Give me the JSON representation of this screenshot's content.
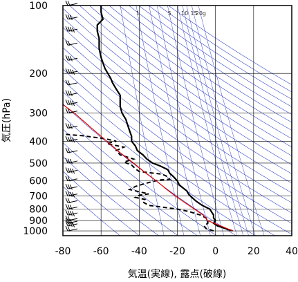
{
  "chart_data": {
    "type": "line",
    "title": "",
    "xlabel": "気温(実線), 露点(破線)",
    "ylabel": "気圧(hPa)",
    "xlim": [
      -80,
      40
    ],
    "ylim": [
      1050,
      100
    ],
    "y_scale": "log",
    "grid": true,
    "x_ticks": [
      -80,
      -60,
      -40,
      -20,
      0,
      20,
      40
    ],
    "y_ticks": [
      100,
      200,
      300,
      400,
      500,
      600,
      700,
      800,
      900,
      1000
    ],
    "mixing_ratio_labels": [
      "1",
      "5",
      "10",
      "15",
      "20g"
    ],
    "mixing_ratio_values": [
      1,
      5,
      10,
      15,
      20
    ],
    "colors": {
      "temperature": "#000000",
      "dewpoint": "#000000",
      "parcel": "#e00000",
      "background_lines": "#3344cc",
      "wind_barbs": "#000000"
    },
    "series": [
      {
        "name": "気温",
        "style": "solid",
        "points": [
          [
            9,
            1000
          ],
          [
            5,
            975
          ],
          [
            1,
            950
          ],
          [
            -1,
            925
          ],
          [
            0,
            900
          ],
          [
            -1,
            875
          ],
          [
            -1,
            850
          ],
          [
            -2,
            825
          ],
          [
            -3,
            800
          ],
          [
            -7,
            770
          ],
          [
            -10,
            740
          ],
          [
            -12,
            715
          ],
          [
            -14,
            690
          ],
          [
            -15,
            665
          ],
          [
            -17,
            645
          ],
          [
            -19,
            625
          ],
          [
            -20,
            600
          ],
          [
            -22,
            575
          ],
          [
            -24,
            555
          ],
          [
            -25,
            535
          ],
          [
            -29,
            515
          ],
          [
            -33,
            500
          ],
          [
            -36,
            480
          ],
          [
            -38,
            460
          ],
          [
            -41,
            440
          ],
          [
            -42,
            420
          ],
          [
            -44,
            400
          ],
          [
            -44,
            380
          ],
          [
            -45,
            360
          ],
          [
            -46,
            340
          ],
          [
            -47,
            320
          ],
          [
            -49,
            300
          ],
          [
            -50,
            280
          ],
          [
            -50,
            265
          ],
          [
            -50,
            250
          ],
          [
            -52,
            235
          ],
          [
            -54,
            220
          ],
          [
            -55,
            210
          ],
          [
            -58,
            190
          ],
          [
            -60,
            170
          ],
          [
            -61,
            155
          ],
          [
            -61,
            140
          ],
          [
            -62,
            130
          ],
          [
            -62,
            122
          ],
          [
            -59,
            115
          ],
          [
            -60,
            107
          ],
          [
            -60,
            100
          ]
        ]
      },
      {
        "name": "露点",
        "style": "dashed",
        "points": [
          [
            -1,
            1000
          ],
          [
            -5,
            975
          ],
          [
            -6,
            950
          ],
          [
            -4,
            925
          ],
          [
            -4,
            900
          ],
          [
            -5,
            875
          ],
          [
            -8,
            850
          ],
          [
            -14,
            820
          ],
          [
            -20,
            800
          ],
          [
            -25,
            790
          ],
          [
            -30,
            780
          ],
          [
            -35,
            770
          ],
          [
            -38,
            745
          ],
          [
            -37,
            725
          ],
          [
            -42,
            710
          ],
          [
            -40,
            695
          ],
          [
            -35,
            685
          ],
          [
            -40,
            670
          ],
          [
            -45,
            655
          ],
          [
            -42,
            635
          ],
          [
            -38,
            620
          ],
          [
            -35,
            610
          ],
          [
            -30,
            595
          ],
          [
            -24,
            590
          ],
          [
            -25,
            575
          ],
          [
            -28,
            560
          ],
          [
            -40,
            545
          ],
          [
            -42,
            530
          ],
          [
            -44,
            510
          ],
          [
            -48,
            495
          ],
          [
            -43,
            480
          ],
          [
            -50,
            460
          ],
          [
            -52,
            440
          ],
          [
            -48,
            425
          ],
          [
            -57,
            410
          ],
          [
            -52,
            400
          ],
          [
            -58,
            390
          ],
          [
            -70,
            378
          ],
          [
            -80,
            372
          ]
        ]
      },
      {
        "name": "parcel",
        "style": "solid-red",
        "points": [
          [
            9,
            1000
          ],
          [
            2.7,
            950
          ],
          [
            -4,
            900
          ],
          [
            -6.5,
            850
          ],
          [
            -11,
            800
          ],
          [
            -16,
            750
          ],
          [
            -21,
            700
          ],
          [
            -26,
            650
          ],
          [
            -31,
            600
          ],
          [
            -37,
            550
          ],
          [
            -43,
            500
          ],
          [
            -50,
            450
          ],
          [
            -57,
            400
          ],
          [
            -65,
            350
          ],
          [
            -74,
            300
          ],
          [
            -80,
            275
          ]
        ]
      }
    ],
    "wind_barbs_side": "left",
    "wind_barb_pressures": [
      100,
      115,
      130,
      150,
      175,
      200,
      225,
      250,
      275,
      300,
      350,
      400,
      450,
      500,
      550,
      600,
      650,
      700,
      750,
      800,
      850,
      900,
      925,
      950,
      1000
    ]
  }
}
